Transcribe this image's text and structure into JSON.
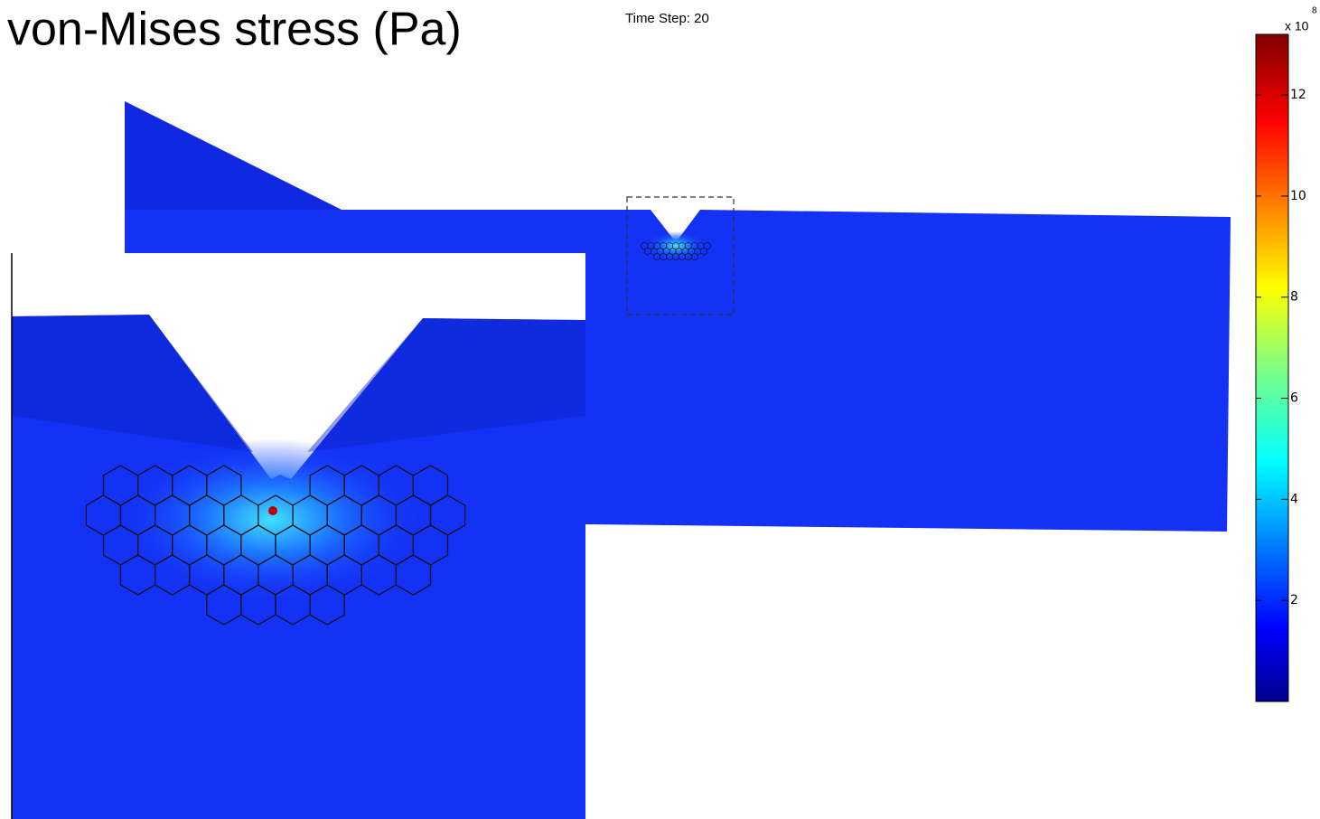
{
  "title": "von-Mises stress (Pa)",
  "time_step": "Time Step: 20",
  "colorbar": {
    "lim": [
      0,
      13.2
    ],
    "ticks": [
      2,
      4,
      6,
      8,
      10,
      12
    ],
    "multiplier": "x 10",
    "exponent": "8"
  }
}
